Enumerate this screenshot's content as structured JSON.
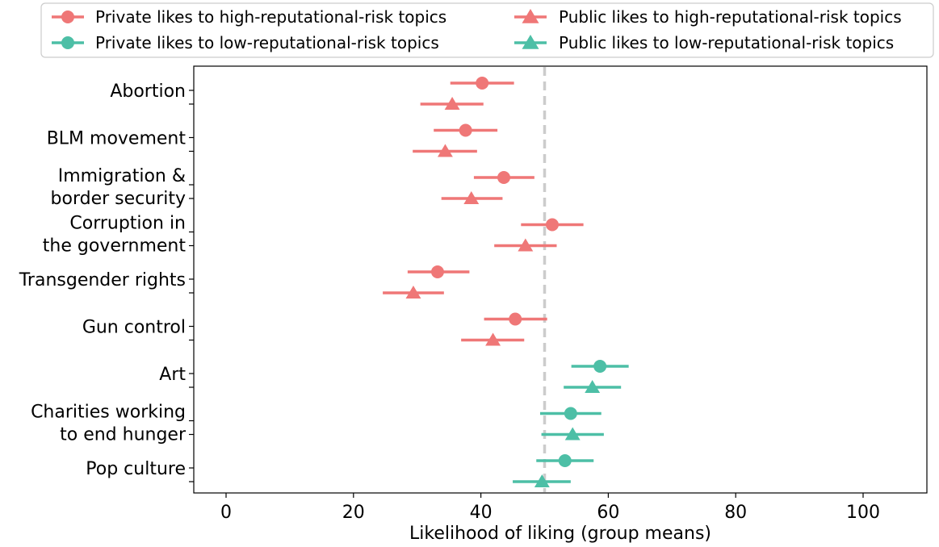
{
  "chart_data": {
    "type": "errorbar-dot",
    "xlabel": "Likelihood of liking (group means)",
    "xlim": [
      -5,
      110
    ],
    "xticks": [
      0,
      20,
      40,
      60,
      80,
      100
    ],
    "reference_line_x": 50,
    "colors": {
      "high": "#EF7777",
      "low": "#4DBFA6",
      "reference": "#CCCCCC"
    },
    "legend": [
      {
        "label": "Private likes to high-reputational-risk topics",
        "marker": "circle",
        "group": "high"
      },
      {
        "label": "Private likes to low-reputational-risk topics",
        "marker": "circle",
        "group": "low"
      },
      {
        "label": "Public likes to high-reputational-risk topics",
        "marker": "triangle",
        "group": "high"
      },
      {
        "label": "Public likes to low-reputational-risk topics",
        "marker": "triangle",
        "group": "low"
      }
    ],
    "categories": [
      {
        "lines": [
          "Abortion"
        ],
        "group": "high",
        "private": {
          "mean": 40.2,
          "low": 35.2,
          "high": 45.2
        },
        "public": {
          "mean": 35.5,
          "low": 30.5,
          "high": 40.4
        }
      },
      {
        "lines": [
          "BLM movement"
        ],
        "group": "high",
        "private": {
          "mean": 37.6,
          "low": 32.6,
          "high": 42.6
        },
        "public": {
          "mean": 34.4,
          "low": 29.3,
          "high": 39.4
        }
      },
      {
        "lines": [
          "Immigration &",
          "border security"
        ],
        "group": "high",
        "private": {
          "mean": 43.6,
          "low": 38.9,
          "high": 48.4
        },
        "public": {
          "mean": 38.5,
          "low": 33.8,
          "high": 43.4
        }
      },
      {
        "lines": [
          "Corruption in",
          "the government"
        ],
        "group": "high",
        "private": {
          "mean": 51.2,
          "low": 46.3,
          "high": 56.1
        },
        "public": {
          "mean": 47.0,
          "low": 42.1,
          "high": 51.9
        }
      },
      {
        "lines": [
          "Transgender rights"
        ],
        "group": "high",
        "private": {
          "mean": 33.2,
          "low": 28.5,
          "high": 38.2
        },
        "public": {
          "mean": 29.4,
          "low": 24.6,
          "high": 34.2
        }
      },
      {
        "lines": [
          "Gun control"
        ],
        "group": "high",
        "private": {
          "mean": 45.4,
          "low": 40.5,
          "high": 50.4
        },
        "public": {
          "mean": 41.9,
          "low": 36.9,
          "high": 46.8
        }
      },
      {
        "lines": [
          "Art"
        ],
        "group": "low",
        "private": {
          "mean": 58.7,
          "low": 54.2,
          "high": 63.2
        },
        "public": {
          "mean": 57.5,
          "low": 53.0,
          "high": 62.0
        }
      },
      {
        "lines": [
          "Charities working",
          "to end hunger"
        ],
        "group": "low",
        "private": {
          "mean": 54.1,
          "low": 49.3,
          "high": 58.9
        },
        "public": {
          "mean": 54.4,
          "low": 49.5,
          "high": 59.3
        }
      },
      {
        "lines": [
          "Pop culture"
        ],
        "group": "low",
        "private": {
          "mean": 53.2,
          "low": 48.7,
          "high": 57.7
        },
        "public": {
          "mean": 49.6,
          "low": 45.0,
          "high": 54.1
        }
      }
    ]
  }
}
